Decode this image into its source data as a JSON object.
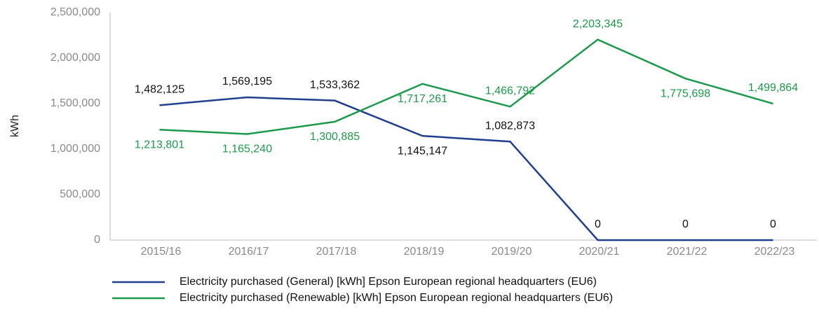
{
  "chart_data": {
    "type": "line",
    "y_label": "kWh",
    "categories": [
      "2015/16",
      "2016/17",
      "2017/18",
      "2018/19",
      "2019/20",
      "2020/21",
      "2021/22",
      "2022/23"
    ],
    "series": [
      {
        "name": "Electricity purchased (General) [kWh] Epson European regional headquarters (EU6)",
        "color": "#1f3f8f",
        "values": [
          1482125,
          1569195,
          1533362,
          1145147,
          1082873,
          0,
          0,
          0
        ],
        "value_labels": [
          "1,482,125",
          "1,569,195",
          "1,533,362",
          "1,145,147",
          "1,082,873",
          "0",
          "0",
          "0"
        ]
      },
      {
        "name": "Electricity purchased (Renewable) [kWh] Epson European regional headquarters (EU6)",
        "color": "#1a9a4a",
        "values": [
          1213801,
          1165240,
          1300885,
          1717261,
          1466792,
          2203345,
          1775698,
          1499864
        ],
        "value_labels": [
          "1,213,801",
          "1,165,240",
          "1,300,885",
          "1,717,261",
          "1,466,792",
          "2,203,345",
          "1,775,698",
          "1,499,864"
        ]
      }
    ],
    "ylim": [
      0,
      2500000
    ],
    "yticks": [
      0,
      {
        "value": 500000,
        "label": "500,000"
      },
      {
        "value": 1000000,
        "label": "1,000,000"
      },
      {
        "value": 1500000,
        "label": "1,500,000"
      },
      {
        "value": 2000000,
        "label": "2,000,000"
      },
      {
        "value": 2500000,
        "label": "2,500,000"
      }
    ]
  }
}
